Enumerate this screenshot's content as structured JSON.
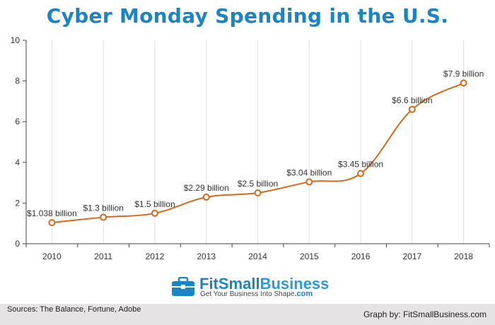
{
  "chart_data": {
    "type": "line",
    "title": "Cyber Monday Spending in the U.S.",
    "xlabel": "",
    "ylabel": "",
    "categories": [
      "2010",
      "2011",
      "2012",
      "2013",
      "2014",
      "2015",
      "2016",
      "2017",
      "2018"
    ],
    "values": [
      1.038,
      1.3,
      1.5,
      2.29,
      2.5,
      3.04,
      3.45,
      6.6,
      7.9
    ],
    "data_labels": [
      "$1.038 billion",
      "$1.3 billion",
      "$1.5 billion",
      "$2.29 billion",
      "$2.5 billion",
      "$3.04 billion",
      "$3.45 billion",
      "$6.6 billion",
      "$7.9 billion"
    ],
    "y_ticks": [
      "0",
      "2",
      "4",
      "6",
      "8",
      "10"
    ],
    "ylim": [
      0,
      10
    ],
    "grid": "vertical",
    "legend": "none",
    "line_color": "#d2691e",
    "title_color": "#1b84c5"
  },
  "logo": {
    "name_bold": "FitSmall",
    "name_light": "Business",
    "tagline": "Get Your Business Into Shape",
    "tld": ".com"
  },
  "footer": {
    "sources": "Sources: The Balance, Fortune, Adobe",
    "credit": "Graph by: FitSmallBusiness.com"
  }
}
